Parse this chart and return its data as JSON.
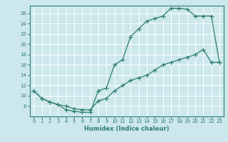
{
  "xlabel": "Humidex (Indice chaleur)",
  "background_color": "#cce8ec",
  "grid_color": "#ffffff",
  "line_color": "#2e7d6e",
  "xlim": [
    -0.5,
    23.5
  ],
  "ylim": [
    6,
    27.5
  ],
  "xticks": [
    0,
    1,
    2,
    3,
    4,
    5,
    6,
    7,
    8,
    9,
    10,
    11,
    12,
    13,
    14,
    15,
    16,
    17,
    18,
    19,
    20,
    21,
    22,
    23
  ],
  "yticks": [
    8,
    10,
    12,
    14,
    16,
    18,
    20,
    22,
    24,
    26
  ],
  "line1_x": [
    0,
    1,
    2,
    3,
    4,
    5,
    6,
    7,
    8,
    9,
    10,
    11,
    12,
    13,
    14,
    15,
    16,
    17,
    18,
    19,
    20,
    21,
    22,
    23
  ],
  "line1_y": [
    11,
    9.5,
    8.8,
    8.3,
    7.3,
    7.0,
    6.8,
    6.8,
    11.0,
    11.5,
    16.0,
    17.0,
    21.5,
    23.0,
    24.5,
    25.0,
    25.5,
    27.0,
    27.0,
    26.8,
    25.5,
    25.5,
    25.5,
    16.5
  ],
  "line2_x": [
    0,
    1,
    2,
    3,
    4,
    5,
    6,
    7,
    8,
    9,
    10,
    11,
    12,
    13,
    14,
    15,
    16,
    17,
    18,
    19,
    20,
    21,
    22,
    23
  ],
  "line2_y": [
    11,
    9.5,
    8.8,
    8.3,
    8.0,
    7.5,
    7.3,
    7.3,
    9.0,
    9.5,
    11.0,
    12.0,
    13.0,
    13.5,
    14.0,
    15.0,
    16.0,
    16.5,
    17.0,
    17.5,
    18.0,
    19.0,
    16.5,
    16.5
  ]
}
